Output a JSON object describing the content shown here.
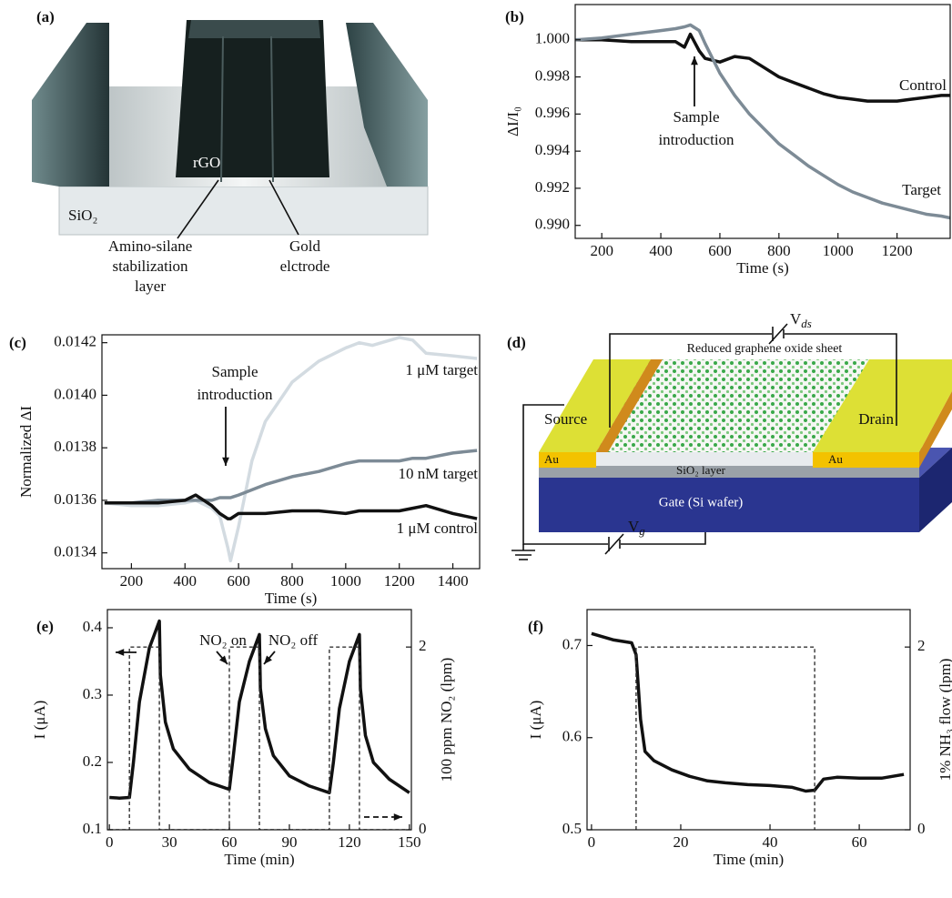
{
  "chart_data": [
    {
      "type": "line",
      "panel_label": "(b)",
      "xlabel": "Time (s)",
      "ylabel": "ΔI/I₀",
      "xlim": [
        110,
        1380
      ],
      "ylim": [
        0.9893,
        1.0019
      ],
      "xticks": [
        200,
        400,
        600,
        800,
        1000,
        1200
      ],
      "yticks": [
        {
          "value": 0.99,
          "label": "0.990"
        },
        0.992,
        0.994,
        0.996,
        0.998,
        {
          "value": 1,
          "label": "1.000"
        }
      ],
      "annotations": [
        "Sample",
        "introduction"
      ],
      "series": [
        {
          "name": "Control",
          "color": "#111111",
          "x": [
            110,
            200,
            300,
            400,
            450,
            480,
            500,
            530,
            550,
            600,
            650,
            700,
            750,
            800,
            850,
            900,
            950,
            1000,
            1050,
            1100,
            1150,
            1200,
            1250,
            1300,
            1350,
            1380
          ],
          "values": [
            1.0,
            1.0,
            0.9999,
            0.9999,
            0.9999,
            0.9996,
            1.0003,
            0.9994,
            0.999,
            0.9988,
            0.9991,
            0.999,
            0.9985,
            0.998,
            0.9977,
            0.9974,
            0.9971,
            0.9969,
            0.9968,
            0.9967,
            0.9967,
            0.9967,
            0.9968,
            0.9969,
            0.997,
            0.997
          ]
        },
        {
          "name": "Target",
          "color": "#7d8b96",
          "x": [
            110,
            200,
            300,
            400,
            450,
            480,
            500,
            530,
            550,
            600,
            650,
            700,
            750,
            800,
            850,
            900,
            950,
            1000,
            1050,
            1100,
            1150,
            1200,
            1250,
            1300,
            1350,
            1380
          ],
          "values": [
            1.0,
            1.0001,
            1.0003,
            1.0005,
            1.0006,
            1.0007,
            1.0008,
            1.0005,
            0.9998,
            0.9982,
            0.997,
            0.996,
            0.9952,
            0.9944,
            0.9938,
            0.9932,
            0.9927,
            0.9922,
            0.9918,
            0.9915,
            0.9912,
            0.991,
            0.9908,
            0.9906,
            0.9905,
            0.9904
          ]
        }
      ]
    },
    {
      "type": "line",
      "panel_label": "(c)",
      "xlabel": "Time (s)",
      "ylabel": "Normalized ΔI",
      "xlim": [
        90,
        1500
      ],
      "ylim": [
        0.01334,
        0.01423
      ],
      "xticks": [
        200,
        400,
        600,
        800,
        1000,
        1200,
        1400
      ],
      "yticks": [
        0.0134,
        0.0136,
        0.0138,
        {
          "value": 0.014,
          "label": "0.0140"
        },
        0.0142
      ],
      "annotations": [
        "Sample",
        "introduction"
      ],
      "series": [
        {
          "name": "1 μM target",
          "color": "#d3dbe1",
          "x": [
            100,
            200,
            300,
            400,
            440,
            500,
            530,
            560,
            570,
            600,
            650,
            700,
            800,
            900,
            1000,
            1050,
            1100,
            1200,
            1250,
            1300,
            1400,
            1490
          ],
          "values": [
            0.01359,
            0.01358,
            0.01358,
            0.01359,
            0.0136,
            0.01357,
            0.01354,
            0.01342,
            0.01337,
            0.0135,
            0.01375,
            0.0139,
            0.01405,
            0.01413,
            0.01418,
            0.0142,
            0.01419,
            0.01422,
            0.01421,
            0.01416,
            0.01415,
            0.01414
          ]
        },
        {
          "name": "10 nM target",
          "color": "#7d8b96",
          "x": [
            100,
            200,
            300,
            400,
            440,
            500,
            530,
            560,
            570,
            600,
            650,
            700,
            800,
            900,
            1000,
            1050,
            1100,
            1200,
            1250,
            1300,
            1400,
            1490
          ],
          "values": [
            0.01359,
            0.01359,
            0.0136,
            0.0136,
            0.0136,
            0.0136,
            0.01361,
            0.01361,
            0.01361,
            0.01362,
            0.01364,
            0.01366,
            0.01369,
            0.01371,
            0.01374,
            0.01375,
            0.01375,
            0.01375,
            0.01376,
            0.01376,
            0.01378,
            0.01379
          ]
        },
        {
          "name": "1 μM control",
          "color": "#111111",
          "x": [
            100,
            200,
            300,
            400,
            440,
            500,
            530,
            560,
            570,
            600,
            650,
            700,
            800,
            900,
            1000,
            1050,
            1100,
            1200,
            1250,
            1300,
            1400,
            1490
          ],
          "values": [
            0.01359,
            0.01359,
            0.01359,
            0.0136,
            0.01362,
            0.01358,
            0.01355,
            0.01353,
            0.01353,
            0.01355,
            0.01355,
            0.01355,
            0.01356,
            0.01356,
            0.01355,
            0.01356,
            0.01356,
            0.01356,
            0.01357,
            0.01358,
            0.01355,
            0.01353
          ]
        }
      ]
    },
    {
      "type": "line",
      "panel_label": "(e)",
      "xlabel": "Time (min)",
      "ylabel": "I (μA)",
      "y2label": "100 ppm NO₂ (lpm)",
      "xlim": [
        -1,
        151
      ],
      "ylim": [
        0.1,
        0.427
      ],
      "y2lim": [
        0,
        2.41
      ],
      "xticks": [
        0,
        30,
        60,
        90,
        120,
        150
      ],
      "yticks": [
        0.1,
        0.2,
        0.3,
        0.4
      ],
      "y2ticks": [
        0,
        2
      ],
      "annotations": [
        "NO₂ on",
        "NO₂ off"
      ],
      "series": [
        {
          "color": "#111111",
          "x": [
            0,
            5,
            10,
            12,
            15,
            20,
            25,
            25.5,
            28,
            32,
            40,
            50,
            60,
            62,
            65,
            70,
            75,
            75.5,
            78,
            82,
            90,
            100,
            110,
            112,
            115,
            120,
            125,
            125.5,
            128,
            132,
            140,
            150
          ],
          "values": [
            0.148,
            0.147,
            0.148,
            0.2,
            0.29,
            0.37,
            0.41,
            0.33,
            0.26,
            0.22,
            0.19,
            0.17,
            0.16,
            0.21,
            0.29,
            0.35,
            0.39,
            0.31,
            0.25,
            0.21,
            0.18,
            0.165,
            0.155,
            0.2,
            0.28,
            0.35,
            0.39,
            0.31,
            0.24,
            0.2,
            0.175,
            0.155
          ]
        },
        {
          "color": "#333333",
          "style": "dashed",
          "axis": "y2",
          "x": [
            0,
            10,
            10,
            25,
            25,
            60,
            60,
            75,
            75,
            110,
            110,
            125,
            125,
            150
          ],
          "values": [
            0,
            0,
            2,
            2,
            0,
            0,
            2,
            2,
            0,
            0,
            2,
            2,
            0,
            0
          ]
        }
      ]
    },
    {
      "type": "line",
      "panel_label": "(f)",
      "xlabel": "Time (min)",
      "ylabel": "I (μA)",
      "y2label": "1% NH₃ flow (lpm)",
      "xlim": [
        -1,
        71.4
      ],
      "ylim": [
        0.5,
        0.739
      ],
      "y2lim": [
        0,
        2.41
      ],
      "xticks": [
        0,
        20,
        40,
        60
      ],
      "yticks": [
        0.5,
        0.6,
        0.7
      ],
      "y2ticks": [
        0,
        2
      ],
      "series": [
        {
          "color": "#111111",
          "x": [
            0,
            5,
            9,
            10,
            11,
            12,
            14,
            18,
            22,
            26,
            30,
            35,
            40,
            45,
            48,
            50,
            52,
            55,
            60,
            65,
            70
          ],
          "values": [
            0.713,
            0.706,
            0.703,
            0.69,
            0.62,
            0.585,
            0.575,
            0.565,
            0.558,
            0.553,
            0.551,
            0.549,
            0.548,
            0.546,
            0.542,
            0.543,
            0.555,
            0.557,
            0.556,
            0.556,
            0.56
          ]
        },
        {
          "color": "#333333",
          "style": "dashed",
          "axis": "y2",
          "x": [
            10,
            10,
            50,
            50
          ],
          "values": [
            0,
            2,
            2,
            0
          ]
        }
      ]
    }
  ],
  "diagram_a": {
    "panel_label": "(a)",
    "rgo": "rGO",
    "substrate": "SiO₂",
    "layer_label": [
      "Amino-silane",
      "stabilization",
      "layer"
    ],
    "electrode_label": [
      "Gold",
      "elctrode"
    ]
  },
  "diagram_d": {
    "panel_label": "(d)",
    "vds": [
      "V",
      "ds"
    ],
    "sheet": "Reduced graphene oxide sheet",
    "source": "Source",
    "drain": "Drain",
    "au_left": "Au",
    "au_right": "Au",
    "oxide": "SiO₂ layer",
    "gate": "Gate (Si wafer)",
    "vg": [
      "V",
      "g"
    ]
  }
}
